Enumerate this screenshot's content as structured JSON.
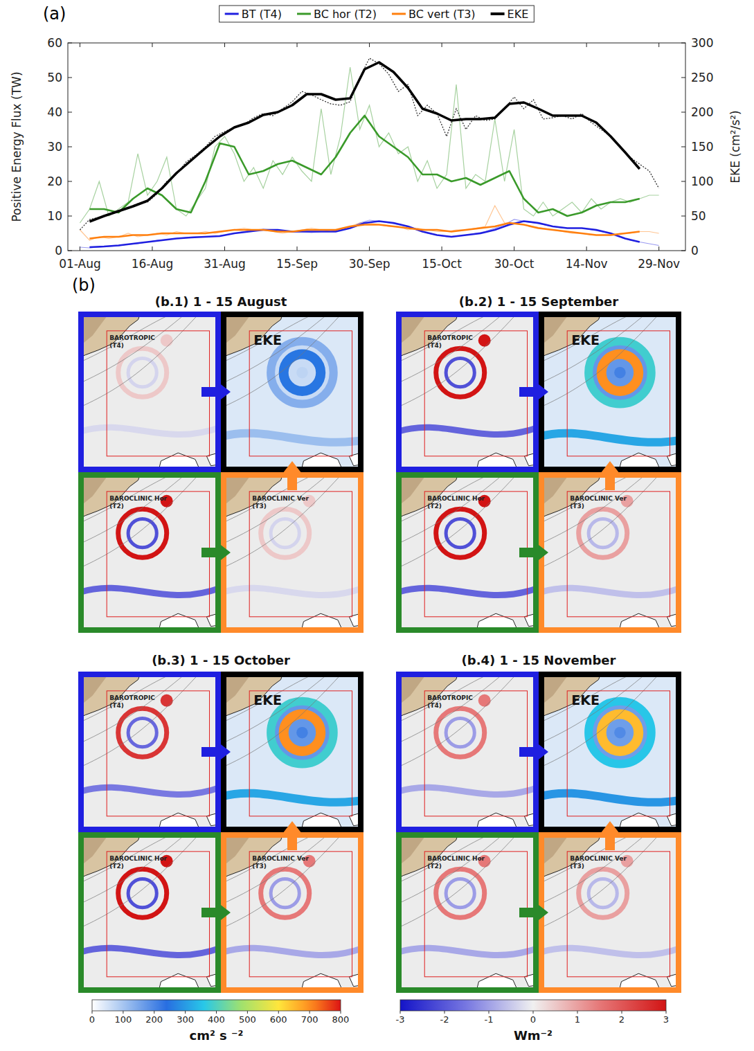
{
  "chart_data": {
    "type": "line",
    "panel_label": "(a)",
    "y_label": "Positive Energy Flux (TW)",
    "y2_label": "EKE (cm²/s²)",
    "xlim": [
      -2.5,
      125.5
    ],
    "ylim": [
      0,
      60
    ],
    "y2lim": [
      0,
      300
    ],
    "xticks": [
      {
        "value": 0,
        "label": "01-Aug"
      },
      {
        "value": 15,
        "label": "16-Aug"
      },
      {
        "value": 30,
        "label": "31-Aug"
      },
      {
        "value": 45,
        "label": "15-Sep"
      },
      {
        "value": 60,
        "label": "30-Sep"
      },
      {
        "value": 75,
        "label": "15-Oct"
      },
      {
        "value": 90,
        "label": "30-Oct"
      },
      {
        "value": 105,
        "label": "14-Nov"
      },
      {
        "value": 120,
        "label": "29-Nov"
      }
    ],
    "yticks": [
      0,
      10,
      20,
      30,
      40,
      50,
      60
    ],
    "y2ticks": [
      0,
      50,
      100,
      150,
      200,
      250,
      300
    ],
    "legend": "top",
    "series": [
      {
        "name": "BT (T4)",
        "color": "#1f1fe0",
        "x": [
          2,
          5,
          8,
          11,
          14,
          17,
          20,
          23,
          26,
          29,
          32,
          35,
          38,
          41,
          44,
          47,
          50,
          53,
          56,
          59,
          62,
          65,
          68,
          71,
          74,
          77,
          80,
          83,
          86,
          89,
          92,
          95,
          98,
          101,
          104,
          107,
          110,
          113,
          116
        ],
        "values": [
          1,
          1.2,
          1.5,
          2,
          2.5,
          3,
          3.5,
          3.8,
          4,
          4.2,
          5,
          5.5,
          6,
          6,
          5.5,
          5.5,
          5.5,
          5.5,
          6.5,
          8,
          8.5,
          8,
          7,
          5.5,
          4.5,
          4,
          4.5,
          5,
          6,
          7.5,
          8.5,
          8,
          7,
          6.5,
          6.5,
          6,
          5,
          3.5,
          2.5
        ],
        "raw_x": [
          0,
          2,
          4,
          6,
          8,
          10,
          12,
          14,
          16,
          18,
          20,
          22,
          24,
          26,
          28,
          30,
          32,
          34,
          36,
          38,
          40,
          42,
          44,
          46,
          48,
          50,
          52,
          54,
          56,
          58,
          60,
          62,
          64,
          66,
          68,
          70,
          72,
          74,
          76,
          78,
          80,
          82,
          84,
          86,
          88,
          90,
          92,
          94,
          96,
          98,
          100,
          102,
          104,
          106,
          108,
          110,
          112,
          114,
          116,
          118,
          120
        ],
        "raw_values": [
          1,
          0.8,
          1,
          1.2,
          1.4,
          1.8,
          2,
          2.5,
          3,
          3.2,
          3.5,
          3.8,
          4,
          4,
          4.2,
          4.5,
          5,
          5.5,
          6,
          6.2,
          6,
          5.8,
          5.5,
          5.5,
          5.2,
          5.5,
          5.5,
          6,
          6.5,
          8,
          8.8,
          8.5,
          8,
          7.5,
          7,
          6,
          5,
          4.5,
          4,
          4.2,
          4.5,
          5,
          5.5,
          6.5,
          7.5,
          9,
          8.5,
          8,
          7.5,
          7,
          6.5,
          6.5,
          6.5,
          6,
          5.5,
          5,
          4,
          3,
          2.5,
          2,
          1.5
        ]
      },
      {
        "name": "BC hor (T2)",
        "color": "#3a9a2a",
        "x": [
          2,
          5,
          8,
          11,
          14,
          17,
          20,
          23,
          26,
          29,
          32,
          35,
          38,
          41,
          44,
          47,
          50,
          53,
          56,
          59,
          62,
          65,
          68,
          71,
          74,
          77,
          80,
          83,
          86,
          89,
          92,
          95,
          98,
          101,
          104,
          107,
          110,
          113,
          116
        ],
        "values": [
          12,
          12,
          11,
          15,
          18,
          16,
          12,
          11,
          20,
          31,
          30,
          22,
          23,
          25,
          26,
          24,
          22,
          27,
          34,
          39,
          33,
          30,
          27,
          22,
          22,
          20,
          21,
          19,
          21,
          23,
          15,
          11,
          12,
          10,
          11,
          13,
          14,
          14,
          15
        ],
        "raw_x": [
          0,
          2,
          4,
          6,
          8,
          10,
          12,
          14,
          16,
          18,
          20,
          22,
          24,
          26,
          28,
          30,
          32,
          34,
          36,
          38,
          40,
          42,
          44,
          46,
          48,
          50,
          52,
          54,
          56,
          58,
          60,
          62,
          64,
          66,
          68,
          70,
          72,
          74,
          76,
          78,
          80,
          82,
          84,
          86,
          88,
          90,
          92,
          94,
          96,
          98,
          100,
          102,
          104,
          106,
          108,
          110,
          112,
          114,
          116,
          118,
          120
        ],
        "raw_values": [
          8,
          12,
          20,
          10,
          12,
          14,
          28,
          16,
          20,
          27,
          12,
          10,
          14,
          18,
          30,
          33,
          28,
          20,
          24,
          18,
          26,
          22,
          27,
          23,
          20,
          41,
          22,
          33,
          53,
          35,
          42,
          30,
          34,
          28,
          30,
          20,
          26,
          18,
          22,
          48,
          18,
          22,
          20,
          38,
          20,
          35,
          12,
          10,
          14,
          10,
          12,
          14,
          11,
          15,
          12,
          14,
          15,
          14,
          15,
          16,
          16
        ]
      },
      {
        "name": "BC vert (T3)",
        "color": "#ff7f0e",
        "x": [
          2,
          5,
          8,
          11,
          14,
          17,
          20,
          23,
          26,
          29,
          32,
          35,
          38,
          41,
          44,
          47,
          50,
          53,
          56,
          59,
          62,
          65,
          68,
          71,
          74,
          77,
          80,
          83,
          86,
          89,
          92,
          95,
          98,
          101,
          104,
          107,
          110,
          113,
          116
        ],
        "values": [
          3.5,
          4,
          4,
          4.5,
          4.5,
          5,
          5,
          5,
          5,
          5.5,
          6,
          6,
          6,
          5.5,
          5.5,
          6,
          6,
          6,
          7,
          7.5,
          7.5,
          7,
          6.5,
          6,
          6,
          5.5,
          6,
          6.5,
          7,
          8,
          7.5,
          6.5,
          6,
          5.5,
          5,
          4.5,
          4.5,
          5,
          5.5
        ],
        "raw_x": [
          0,
          2,
          4,
          6,
          8,
          10,
          12,
          14,
          16,
          18,
          20,
          22,
          24,
          26,
          28,
          30,
          32,
          34,
          36,
          38,
          40,
          42,
          44,
          46,
          48,
          50,
          52,
          54,
          56,
          58,
          60,
          62,
          64,
          66,
          68,
          70,
          72,
          74,
          76,
          78,
          80,
          82,
          84,
          86,
          88,
          90,
          92,
          94,
          96,
          98,
          100,
          102,
          104,
          106,
          108,
          110,
          112,
          114,
          116,
          118,
          120
        ],
        "raw_values": [
          6,
          3,
          4,
          3.5,
          4,
          5,
          4,
          4.5,
          5,
          4.5,
          5.5,
          5,
          5,
          5.5,
          5,
          5.5,
          6,
          6.5,
          6,
          6,
          5.5,
          5,
          5.5,
          6,
          6.5,
          6,
          5.5,
          6,
          7,
          8,
          8,
          7.5,
          7,
          7,
          6,
          6.5,
          6,
          5.5,
          5.5,
          6,
          6,
          6.5,
          7,
          13,
          8,
          8,
          7.5,
          7,
          6.5,
          6,
          5.5,
          5,
          5,
          4.5,
          4.5,
          4.5,
          5,
          5,
          5.5,
          5.5,
          5
        ]
      },
      {
        "name": "EKE",
        "color": "#000000",
        "axis": "y2",
        "x": [
          2,
          5,
          8,
          11,
          14,
          17,
          20,
          23,
          26,
          29,
          32,
          35,
          38,
          41,
          44,
          47,
          50,
          53,
          56,
          59,
          62,
          65,
          68,
          71,
          74,
          77,
          80,
          83,
          86,
          89,
          92,
          95,
          98,
          101,
          104,
          107,
          110,
          113,
          116
        ],
        "values": [
          42,
          50,
          57,
          64,
          72,
          90,
          112,
          130,
          148,
          165,
          178,
          185,
          196,
          200,
          210,
          226,
          226,
          218,
          220,
          262,
          272,
          258,
          235,
          205,
          198,
          188,
          190,
          190,
          192,
          212,
          214,
          205,
          195,
          195,
          195,
          185,
          165,
          142,
          118
        ],
        "raw_x": [
          0,
          2,
          4,
          6,
          8,
          10,
          12,
          14,
          16,
          18,
          20,
          22,
          24,
          26,
          28,
          30,
          32,
          34,
          36,
          38,
          40,
          42,
          44,
          46,
          48,
          50,
          52,
          54,
          56,
          58,
          60,
          62,
          64,
          66,
          68,
          70,
          72,
          74,
          76,
          78,
          80,
          82,
          84,
          86,
          88,
          90,
          92,
          94,
          96,
          98,
          100,
          102,
          104,
          106,
          108,
          110,
          112,
          114,
          116,
          118,
          120
        ],
        "raw_values": [
          30,
          45,
          48,
          52,
          58,
          62,
          68,
          70,
          82,
          100,
          110,
          128,
          138,
          150,
          165,
          172,
          178,
          182,
          192,
          198,
          195,
          205,
          215,
          230,
          225,
          218,
          212,
          210,
          215,
          250,
          278,
          270,
          255,
          230,
          240,
          195,
          210,
          198,
          165,
          205,
          175,
          195,
          188,
          190,
          205,
          222,
          205,
          218,
          190,
          192,
          195,
          190,
          198,
          185,
          175,
          165,
          150,
          135,
          125,
          115,
          90
        ]
      }
    ]
  },
  "maps": {
    "panel_label": "(b)",
    "panels": [
      {
        "title": "(b.1) 1 - 15 August",
        "quadrants": [
          {
            "label": "BAROTROPIC",
            "sublabel": "(T4)",
            "peak": 0.5
          },
          {
            "label": "EKE",
            "peak": 250
          },
          {
            "label": "BAROCLINIC Hor",
            "sublabel": "(T2)",
            "peak": 3
          },
          {
            "label": "BAROCLINIC Ver",
            "sublabel": "(T3)",
            "peak": 0.5
          }
        ]
      },
      {
        "title": "(b.2) 1 - 15 September",
        "quadrants": [
          {
            "label": "BAROTROPIC",
            "sublabel": "(T4)",
            "peak": 3
          },
          {
            "label": "EKE",
            "peak": 700
          },
          {
            "label": "BAROCLINIC Hor",
            "sublabel": "(T2)",
            "peak": 3
          },
          {
            "label": "BAROCLINIC Ver",
            "sublabel": "(T3)",
            "peak": 1
          }
        ]
      },
      {
        "title": "(b.3) 1 - 15 October",
        "quadrants": [
          {
            "label": "BAROTROPIC",
            "sublabel": "(T4)",
            "peak": 2.5
          },
          {
            "label": "EKE",
            "peak": 700
          },
          {
            "label": "BAROCLINIC Hor",
            "sublabel": "(T2)",
            "peak": 3
          },
          {
            "label": "BAROCLINIC Ver",
            "sublabel": "(T3)",
            "peak": 1.5
          }
        ]
      },
      {
        "title": "(b.4) 1 - 15 November",
        "quadrants": [
          {
            "label": "BAROTROPIC",
            "sublabel": "(T4)",
            "peak": 1.5
          },
          {
            "label": "EKE",
            "peak": 650
          },
          {
            "label": "BAROCLINIC Hor",
            "sublabel": "(T2)",
            "peak": 1.5
          },
          {
            "label": "BAROCLINIC Ver",
            "sublabel": "(T3)",
            "peak": 1
          }
        ]
      }
    ],
    "colorbars": [
      {
        "label": "cm² s ⁻²",
        "lim": [
          0,
          800
        ],
        "ticks": [
          0,
          100,
          200,
          300,
          400,
          500,
          600,
          700,
          800
        ]
      },
      {
        "label": "Wm⁻²",
        "lim": [
          -3,
          3
        ],
        "ticks": [
          -3,
          -2,
          -1,
          0,
          1,
          2,
          3
        ]
      }
    ]
  }
}
